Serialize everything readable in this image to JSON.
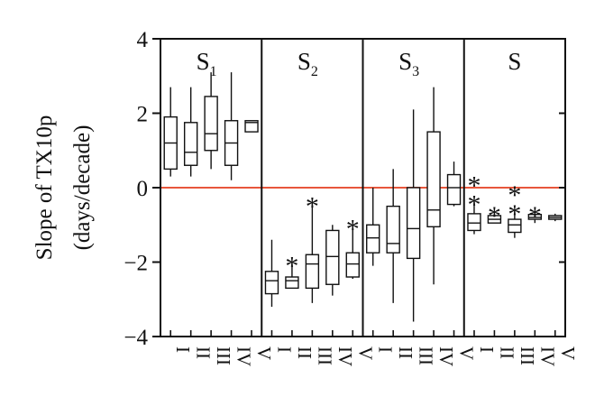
{
  "chart_data": {
    "type": "boxplot",
    "ylabel_line1": "Slope of TX10p",
    "ylabel_line2": "(days/decade)",
    "ylim": [
      -4,
      4
    ],
    "yticks": [
      4,
      2,
      0,
      -2,
      -4
    ],
    "reference_line": {
      "y": 0,
      "color": "#e8573c"
    },
    "categories": [
      "I",
      "II",
      "III",
      "IV",
      "V"
    ],
    "panels": [
      {
        "title": "S",
        "subscript": "1",
        "boxes": [
          {
            "category": "I",
            "whisker_low": 0.3,
            "q1": 0.5,
            "median": 1.2,
            "q3": 1.9,
            "whisker_high": 2.7,
            "significant": 0
          },
          {
            "category": "II",
            "whisker_low": 0.3,
            "q1": 0.6,
            "median": 0.95,
            "q3": 1.75,
            "whisker_high": 2.7,
            "significant": 0
          },
          {
            "category": "III",
            "whisker_low": 0.5,
            "q1": 1.0,
            "median": 1.45,
            "q3": 2.45,
            "whisker_high": 3.1,
            "significant": 0
          },
          {
            "category": "IV",
            "whisker_low": 0.2,
            "q1": 0.6,
            "median": 1.2,
            "q3": 1.8,
            "whisker_high": 3.1,
            "significant": 0
          },
          {
            "category": "V",
            "whisker_low": 1.5,
            "q1": 1.5,
            "median": 1.75,
            "q3": 1.8,
            "whisker_high": 1.8,
            "significant": 0
          }
        ]
      },
      {
        "title": "S",
        "subscript": "2",
        "boxes": [
          {
            "category": "I",
            "whisker_low": -3.2,
            "q1": -2.85,
            "median": -2.5,
            "q3": -2.25,
            "whisker_high": -1.4,
            "significant": 0
          },
          {
            "category": "II",
            "whisker_low": -2.7,
            "q1": -2.7,
            "median": -2.5,
            "q3": -2.4,
            "whisker_high": -2.0,
            "significant": 1
          },
          {
            "category": "III",
            "whisker_low": -3.1,
            "q1": -2.7,
            "median": -2.05,
            "q3": -1.8,
            "whisker_high": -0.4,
            "significant": 1
          },
          {
            "category": "IV",
            "whisker_low": -2.9,
            "q1": -2.6,
            "median": -1.85,
            "q3": -1.15,
            "whisker_high": -1.0,
            "significant": 0
          },
          {
            "category": "V",
            "whisker_low": -2.45,
            "q1": -2.4,
            "median": -2.05,
            "q3": -1.75,
            "whisker_high": -1.0,
            "significant": 1
          }
        ]
      },
      {
        "title": "S",
        "subscript": "3",
        "boxes": [
          {
            "category": "I",
            "whisker_low": -2.1,
            "q1": -1.75,
            "median": -1.35,
            "q3": -1.0,
            "whisker_high": 0.0,
            "significant": 0
          },
          {
            "category": "II",
            "whisker_low": -3.1,
            "q1": -1.75,
            "median": -1.5,
            "q3": -0.5,
            "whisker_high": 0.5,
            "significant": 0
          },
          {
            "category": "III",
            "whisker_low": -3.6,
            "q1": -1.9,
            "median": -1.1,
            "q3": 0.0,
            "whisker_high": 2.1,
            "significant": 0
          },
          {
            "category": "IV",
            "whisker_low": -2.6,
            "q1": -1.05,
            "median": -0.6,
            "q3": 1.5,
            "whisker_high": 2.7,
            "significant": 0
          },
          {
            "category": "V",
            "whisker_low": -0.5,
            "q1": -0.45,
            "median": 0.0,
            "q3": 0.35,
            "whisker_high": 0.7,
            "significant": 0
          }
        ]
      },
      {
        "title": "S",
        "subscript": "",
        "boxes": [
          {
            "category": "I",
            "whisker_low": -1.25,
            "q1": -1.15,
            "median": -0.95,
            "q3": -0.7,
            "whisker_high": -0.35,
            "significant": 2
          },
          {
            "category": "II",
            "whisker_low": -0.95,
            "q1": -0.95,
            "median": -0.85,
            "q3": -0.75,
            "whisker_high": -0.65,
            "significant": 1
          },
          {
            "category": "III",
            "whisker_low": -1.35,
            "q1": -1.2,
            "median": -1.0,
            "q3": -0.85,
            "whisker_high": -0.6,
            "significant": 2
          },
          {
            "category": "IV",
            "whisker_low": -0.95,
            "q1": -0.85,
            "median": -0.8,
            "q3": -0.72,
            "whisker_high": -0.65,
            "significant": 1
          },
          {
            "category": "V",
            "whisker_low": -0.9,
            "q1": -0.85,
            "median": -0.8,
            "q3": -0.75,
            "whisker_high": -0.7,
            "significant": 0
          }
        ]
      }
    ]
  }
}
